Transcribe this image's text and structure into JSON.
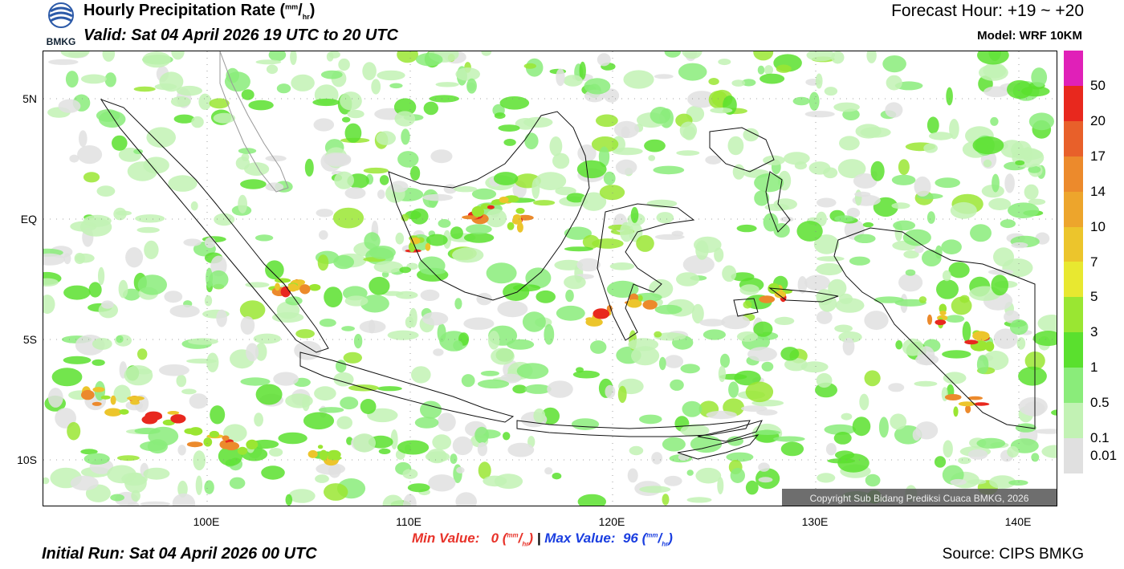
{
  "header": {
    "title": "Hourly Precipitation Rate",
    "title_unit_num": "mm",
    "title_unit_den": "hr",
    "valid": "Valid: Sat 04 April 2026 19 UTC to 20 UTC",
    "forecast_hour": "Forecast Hour: +19 ~ +20",
    "model": "Model: WRF 10KM",
    "logo_text": "BMKG"
  },
  "map": {
    "lat_labels": [
      "5N",
      "EQ",
      "5S",
      "10S"
    ],
    "lon_labels": [
      "100E",
      "110E",
      "120E",
      "130E",
      "140E"
    ],
    "copyright": "Copyright Sub Bidang Prediksi Cuaca BMKG, 2026"
  },
  "colorbar": {
    "labels": [
      "50",
      "20",
      "17",
      "14",
      "10",
      "7",
      "5",
      "3",
      "1",
      "0.5",
      "0.1",
      "0.01"
    ],
    "colors": [
      "#e020b8",
      "#e8281e",
      "#e8602a",
      "#ec8a2c",
      "#eda52c",
      "#ecc52c",
      "#e8e830",
      "#9ae632",
      "#5ae02e",
      "#8aec7a",
      "#c2f2b4",
      "#e0e0e0"
    ]
  },
  "footer": {
    "min_label": "Min Value:",
    "min_value": "0",
    "separator": "|",
    "max_label": "Max Value:",
    "max_value": "96",
    "unit_num": "mm",
    "unit_den": "hr",
    "initial_run": "Initial Run: Sat 04 April 2026 00 UTC",
    "source": "Source: CIPS BMKG"
  }
}
